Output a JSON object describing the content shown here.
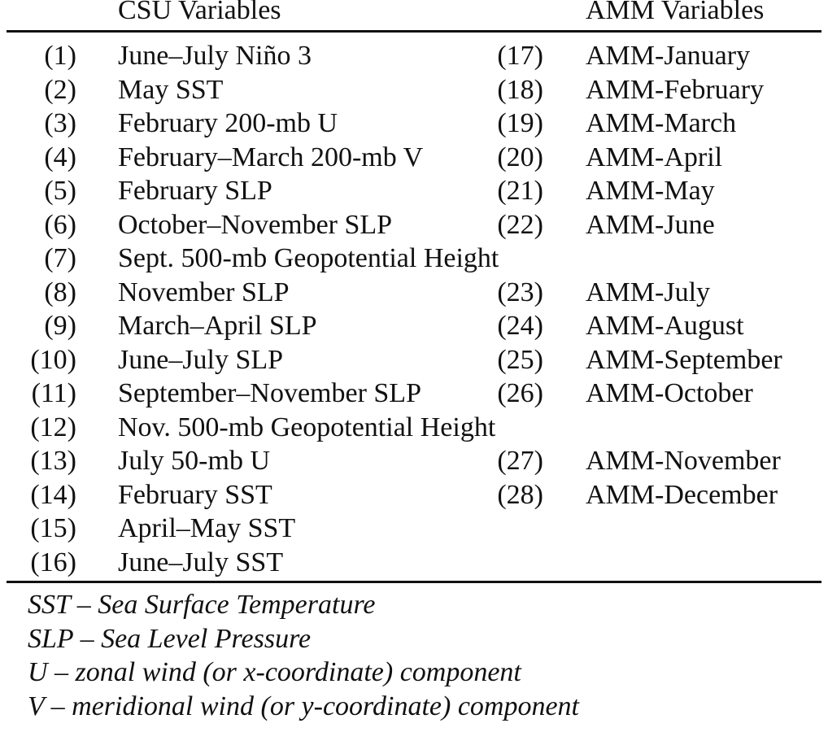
{
  "header": {
    "csu_title": "CSU Variables",
    "amm_title": "AMM Variables"
  },
  "rows": [
    {
      "num1": "(1)",
      "var1": "June–July Niño 3",
      "num2": "(17)",
      "var2": "AMM-January"
    },
    {
      "num1": "(2)",
      "var1": "May SST",
      "num2": "(18)",
      "var2": "AMM-February"
    },
    {
      "num1": "(3)",
      "var1": "February 200-mb U",
      "num2": "(19)",
      "var2": "AMM-March"
    },
    {
      "num1": "(4)",
      "var1": "February–March 200-mb V",
      "num2": "(20)",
      "var2": "AMM-April"
    },
    {
      "num1": "(5)",
      "var1": "February SLP",
      "num2": "(21)",
      "var2": "AMM-May"
    },
    {
      "num1": "(6)",
      "var1": "October–November SLP",
      "num2": "(22)",
      "var2": "AMM-June"
    },
    {
      "num1": "(7)",
      "var1": "Sept. 500-mb Geopotential Height",
      "num2": "",
      "var2": ""
    },
    {
      "num1": "(8)",
      "var1": "November SLP",
      "num2": "(23)",
      "var2": "AMM-July"
    },
    {
      "num1": "(9)",
      "var1": "March–April SLP",
      "num2": "(24)",
      "var2": "AMM-August"
    },
    {
      "num1": "(10)",
      "var1": "June–July SLP",
      "num2": "(25)",
      "var2": "AMM-September"
    },
    {
      "num1": "(11)",
      "var1": "September–November SLP",
      "num2": "(26)",
      "var2": "AMM-October"
    },
    {
      "num1": "(12)",
      "var1": "Nov. 500-mb Geopotential Height",
      "num2": "",
      "var2": ""
    },
    {
      "num1": "(13)",
      "var1": "July 50-mb U",
      "num2": "(27)",
      "var2": "AMM-November"
    },
    {
      "num1": "(14)",
      "var1": "February SST",
      "num2": "(28)",
      "var2": "AMM-December"
    },
    {
      "num1": "(15)",
      "var1": "April–May SST",
      "num2": "",
      "var2": ""
    },
    {
      "num1": "(16)",
      "var1": "June–July SST",
      "num2": "",
      "var2": ""
    }
  ],
  "notes": [
    "SST – Sea Surface Temperature",
    "SLP – Sea Level Pressure",
    "U – zonal wind (or x-coordinate) component",
    "V – meridional wind (or y-coordinate) component"
  ]
}
